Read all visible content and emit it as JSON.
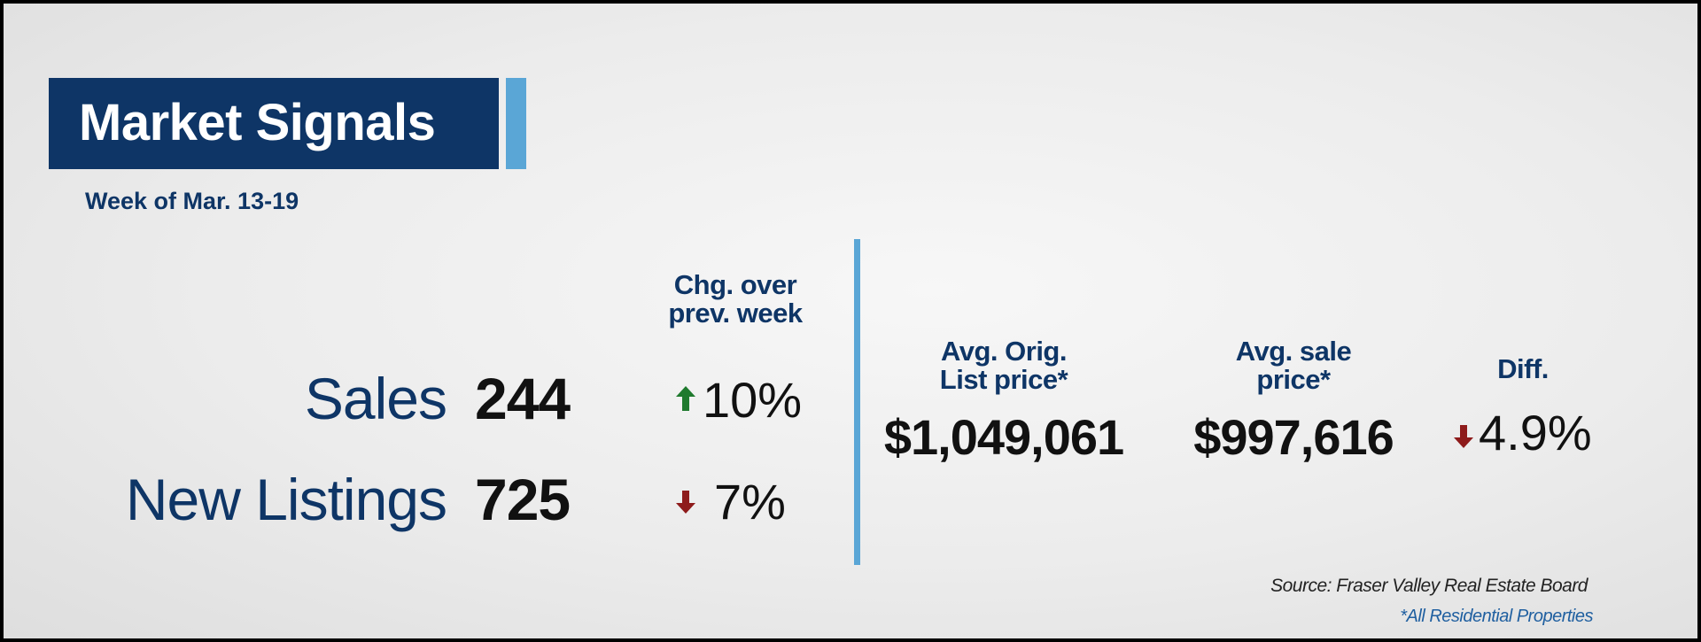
{
  "header": {
    "title": "Market Signals",
    "subtitle": "Week of Mar. 13-19"
  },
  "change_header": [
    "Chg. over",
    "prev. week"
  ],
  "rows": [
    {
      "label": "Sales",
      "value": "244",
      "change": "10%"
    },
    {
      "label": "New Listings",
      "value": "725",
      "change": "7%"
    }
  ],
  "prices": [
    {
      "header": [
        "Avg. Orig.",
        "List price*"
      ],
      "value": "$1,049,061"
    },
    {
      "header": [
        "Avg. sale",
        "price*"
      ],
      "value": "$997,616"
    }
  ],
  "diff": {
    "header": "Diff.",
    "value": "4.9%"
  },
  "footer": {
    "source": "Source: Fraser Valley Real Estate Board",
    "note": "*All Residential Properties"
  }
}
